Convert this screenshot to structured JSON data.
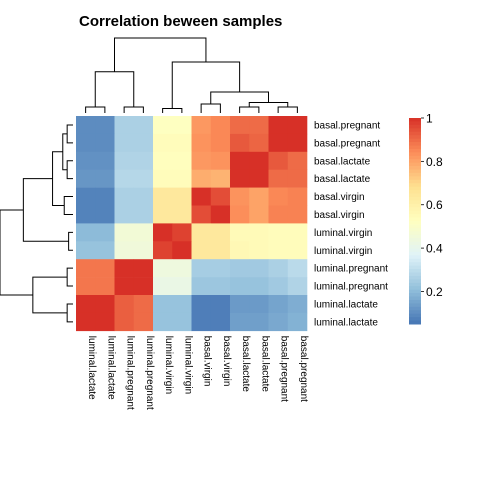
{
  "chart_data": {
    "type": "heatmap",
    "title": "Correlation beween samples",
    "row_labels": [
      "basal.pregnant",
      "basal.pregnant",
      "basal.lactate",
      "basal.lactate",
      "basal.virgin",
      "basal.virgin",
      "luminal.virgin",
      "luminal.virgin",
      "luminal.pregnant",
      "luminal.pregnant",
      "luminal.lactate",
      "luminal.lactate"
    ],
    "col_labels": [
      "luminal.lactate",
      "luminal.lactate",
      "luminal.pregnant",
      "luminal.pregnant",
      "luminal.virgin",
      "luminal.virgin",
      "basal.virgin",
      "basal.virgin",
      "basal.lactate",
      "basal.lactate",
      "basal.pregnant",
      "basal.pregnant"
    ],
    "values": [
      [
        0.1,
        0.1,
        0.26,
        0.26,
        0.52,
        0.52,
        0.82,
        0.85,
        0.9,
        0.9,
        1.0,
        1.0
      ],
      [
        0.1,
        0.1,
        0.26,
        0.26,
        0.54,
        0.54,
        0.83,
        0.85,
        0.93,
        0.91,
        1.0,
        1.0
      ],
      [
        0.11,
        0.11,
        0.27,
        0.27,
        0.53,
        0.53,
        0.82,
        0.83,
        1.0,
        1.0,
        0.93,
        0.9
      ],
      [
        0.12,
        0.12,
        0.28,
        0.28,
        0.54,
        0.54,
        0.78,
        0.77,
        1.0,
        1.0,
        0.9,
        0.9
      ],
      [
        0.08,
        0.08,
        0.26,
        0.26,
        0.64,
        0.64,
        1.0,
        0.95,
        0.83,
        0.8,
        0.85,
        0.86
      ],
      [
        0.08,
        0.08,
        0.26,
        0.26,
        0.64,
        0.64,
        0.95,
        1.0,
        0.84,
        0.8,
        0.86,
        0.86
      ],
      [
        0.2,
        0.2,
        0.46,
        0.46,
        1.0,
        0.97,
        0.64,
        0.64,
        0.55,
        0.55,
        0.54,
        0.54
      ],
      [
        0.22,
        0.22,
        0.45,
        0.45,
        0.97,
        1.0,
        0.64,
        0.64,
        0.56,
        0.55,
        0.54,
        0.54
      ],
      [
        0.88,
        0.88,
        1.0,
        1.0,
        0.44,
        0.44,
        0.25,
        0.25,
        0.24,
        0.24,
        0.26,
        0.29
      ],
      [
        0.88,
        0.88,
        1.0,
        1.0,
        0.42,
        0.42,
        0.23,
        0.23,
        0.22,
        0.22,
        0.24,
        0.27
      ],
      [
        1.0,
        1.0,
        0.92,
        0.9,
        0.22,
        0.22,
        0.07,
        0.07,
        0.13,
        0.13,
        0.15,
        0.17
      ],
      [
        1.0,
        1.0,
        0.92,
        0.9,
        0.22,
        0.22,
        0.07,
        0.07,
        0.14,
        0.14,
        0.16,
        0.18
      ]
    ],
    "legend": {
      "ticks": [
        1,
        0.8,
        0.6,
        0.4,
        0.2
      ],
      "range": [
        0.05,
        1
      ],
      "colors": [
        "#4575B4",
        "#91BFDB",
        "#E0F3F8",
        "#FFFFBF",
        "#FEE090",
        "#FC8D59",
        "#D73027"
      ]
    },
    "row_dendrogram": true,
    "col_dendrogram": true
  }
}
